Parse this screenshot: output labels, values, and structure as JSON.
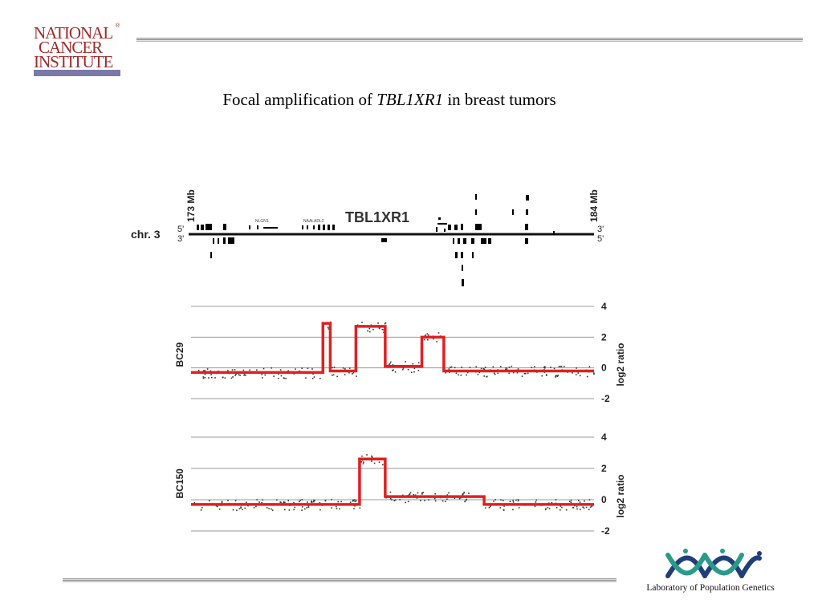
{
  "header": {
    "logo_text": "NATIONAL CANCER INSTITUTE",
    "logo_lines": [
      "NATIONAL",
      "CANCER",
      "INSTITUTE"
    ],
    "logo_registered": "®",
    "logo_color": "#a02a2a",
    "logo_bar_color": "#7a79a8"
  },
  "slide": {
    "title_prefix": "Focal amplification of ",
    "title_gene": "TBL1XR1",
    "title_suffix": " in breast tumors"
  },
  "figure": {
    "chromosome_label": "chr. 3",
    "start_label": "173 Mb",
    "end_label": "184 Mb",
    "strand_5_left": "5'",
    "strand_3_left": "3'",
    "strand_3_right": "3'",
    "strand_5_right": "5'",
    "gene_label": "TBL1XR1",
    "small_gene_labels": [
      "NLGN1",
      "NAALADL2"
    ],
    "colors": {
      "segment": "#e02020",
      "points": "#333333",
      "grid": "#9a9a9a"
    }
  },
  "chart_data": [
    {
      "type": "line",
      "sample": "BC29",
      "ylabel": "log2 ratio",
      "xlim": [
        173,
        184
      ],
      "ylim": [
        -2,
        4
      ],
      "yticks": [
        4,
        2,
        0,
        -2
      ],
      "grid": true,
      "segments": [
        {
          "x0": 173.0,
          "x1": 176.6,
          "y": -0.3
        },
        {
          "x0": 176.6,
          "x1": 176.8,
          "y": 2.9
        },
        {
          "x0": 176.8,
          "x1": 177.5,
          "y": -0.2
        },
        {
          "x0": 177.5,
          "x1": 178.3,
          "y": 2.7
        },
        {
          "x0": 178.3,
          "x1": 179.3,
          "y": 0.1
        },
        {
          "x0": 179.3,
          "x1": 179.9,
          "y": 2.0
        },
        {
          "x0": 179.9,
          "x1": 184.0,
          "y": -0.2
        }
      ]
    },
    {
      "type": "line",
      "sample": "BC150",
      "ylabel": "log2 ratio",
      "xlim": [
        173,
        184
      ],
      "ylim": [
        -2,
        4
      ],
      "yticks": [
        4,
        2,
        0,
        -2
      ],
      "grid": true,
      "segments": [
        {
          "x0": 173.0,
          "x1": 177.6,
          "y": -0.3
        },
        {
          "x0": 177.6,
          "x1": 178.3,
          "y": 2.6
        },
        {
          "x0": 178.3,
          "x1": 181.0,
          "y": 0.2
        },
        {
          "x0": 181.0,
          "x1": 184.0,
          "y": -0.3
        }
      ]
    }
  ],
  "footer": {
    "lab_name": "Laboratory of Population Genetics",
    "logo_colors": [
      "#1f3f7a",
      "#2a9a8a"
    ]
  }
}
